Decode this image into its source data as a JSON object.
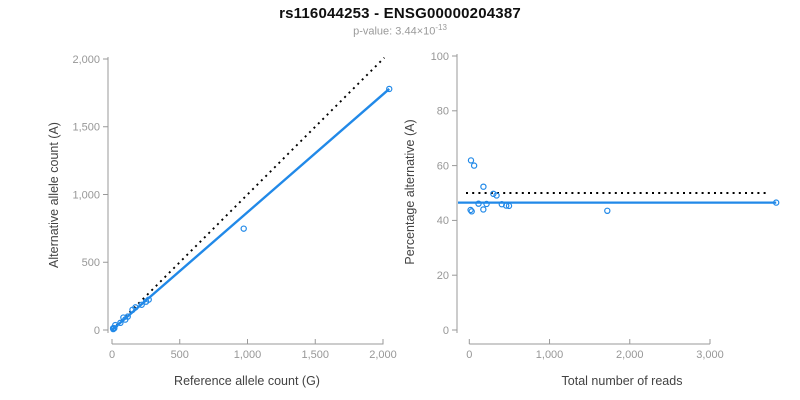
{
  "header": {
    "title": "rs116044253 - ENSG00000204387",
    "p_value_prefix": "p-value: ",
    "p_value_mantissa": "3.44×10",
    "p_value_exponent": "-13"
  },
  "colors": {
    "accent_blue": "#2189e8",
    "expected_line_black": "#000000",
    "axis_gray": "#999999",
    "tick_label_gray": "#979797",
    "axis_title_gray": "#434343"
  },
  "chart_data": [
    {
      "id": "allele-count-plot",
      "type": "scatter",
      "xlabel": "Reference allele count (G)",
      "ylabel": "Alternative allele count (A)",
      "xlim": [
        0,
        2100
      ],
      "ylim": [
        0,
        2035
      ],
      "grid": false,
      "xticks": [
        {
          "v": 0,
          "label": "0"
        },
        {
          "v": 500,
          "label": "500"
        },
        {
          "v": 1000,
          "label": "1,000"
        },
        {
          "v": 1500,
          "label": "1,500"
        },
        {
          "v": 2000,
          "label": "2,000"
        }
      ],
      "yticks": [
        {
          "v": 0,
          "label": "0"
        },
        {
          "v": 500,
          "label": "500"
        },
        {
          "v": 1000,
          "label": "1,000"
        },
        {
          "v": 1500,
          "label": "1,500"
        },
        {
          "v": 2000,
          "label": "2,000"
        }
      ],
      "points": [
        [
          8,
          13
        ],
        [
          9,
          7
        ],
        [
          17,
          13
        ],
        [
          24,
          36
        ],
        [
          62,
          53
        ],
        [
          84,
          92
        ],
        [
          98,
          77
        ],
        [
          116,
          99
        ],
        [
          151,
          149
        ],
        [
          173,
          167
        ],
        [
          219,
          186
        ],
        [
          251,
          209
        ],
        [
          271,
          224
        ],
        [
          972,
          748
        ],
        [
          2046,
          1779
        ]
      ],
      "lines": [
        {
          "name": "expected-identity",
          "style": "dotted",
          "x1": 0,
          "y1": 0,
          "x2": 2010,
          "y2": 2010
        },
        {
          "name": "fit",
          "style": "solid",
          "x1": 0,
          "y1": 0,
          "x2": 2046,
          "y2": 1779
        }
      ]
    },
    {
      "id": "percentage-plot",
      "type": "scatter",
      "xlabel": "Total number of reads",
      "ylabel": "Percentage alternative (A)",
      "xlim": [
        0,
        3900
      ],
      "ylim": [
        0,
        100
      ],
      "grid": false,
      "xticks": [
        {
          "v": 0,
          "label": "0"
        },
        {
          "v": 1000,
          "label": "1,000"
        },
        {
          "v": 2000,
          "label": "2,000"
        },
        {
          "v": 3000,
          "label": "3,000"
        }
      ],
      "yticks": [
        {
          "v": 0,
          "label": "0"
        },
        {
          "v": 20,
          "label": "20"
        },
        {
          "v": 40,
          "label": "40"
        },
        {
          "v": 60,
          "label": "60"
        },
        {
          "v": 80,
          "label": "80"
        },
        {
          "v": 100,
          "label": "100"
        }
      ],
      "points": [
        [
          21,
          61.9
        ],
        [
          16,
          43.8
        ],
        [
          30,
          43.3
        ],
        [
          60,
          60.0
        ],
        [
          115,
          46.1
        ],
        [
          176,
          52.3
        ],
        [
          175,
          44.0
        ],
        [
          215,
          46.0
        ],
        [
          300,
          49.7
        ],
        [
          340,
          49.1
        ],
        [
          405,
          45.9
        ],
        [
          460,
          45.4
        ],
        [
          495,
          45.3
        ],
        [
          1720,
          43.5
        ],
        [
          3825,
          46.5
        ]
      ],
      "hlines": [
        {
          "name": "expected-percentage",
          "style": "dotted",
          "y": 50
        },
        {
          "name": "fit-percentage",
          "style": "solid",
          "y": 46.5
        }
      ]
    }
  ]
}
